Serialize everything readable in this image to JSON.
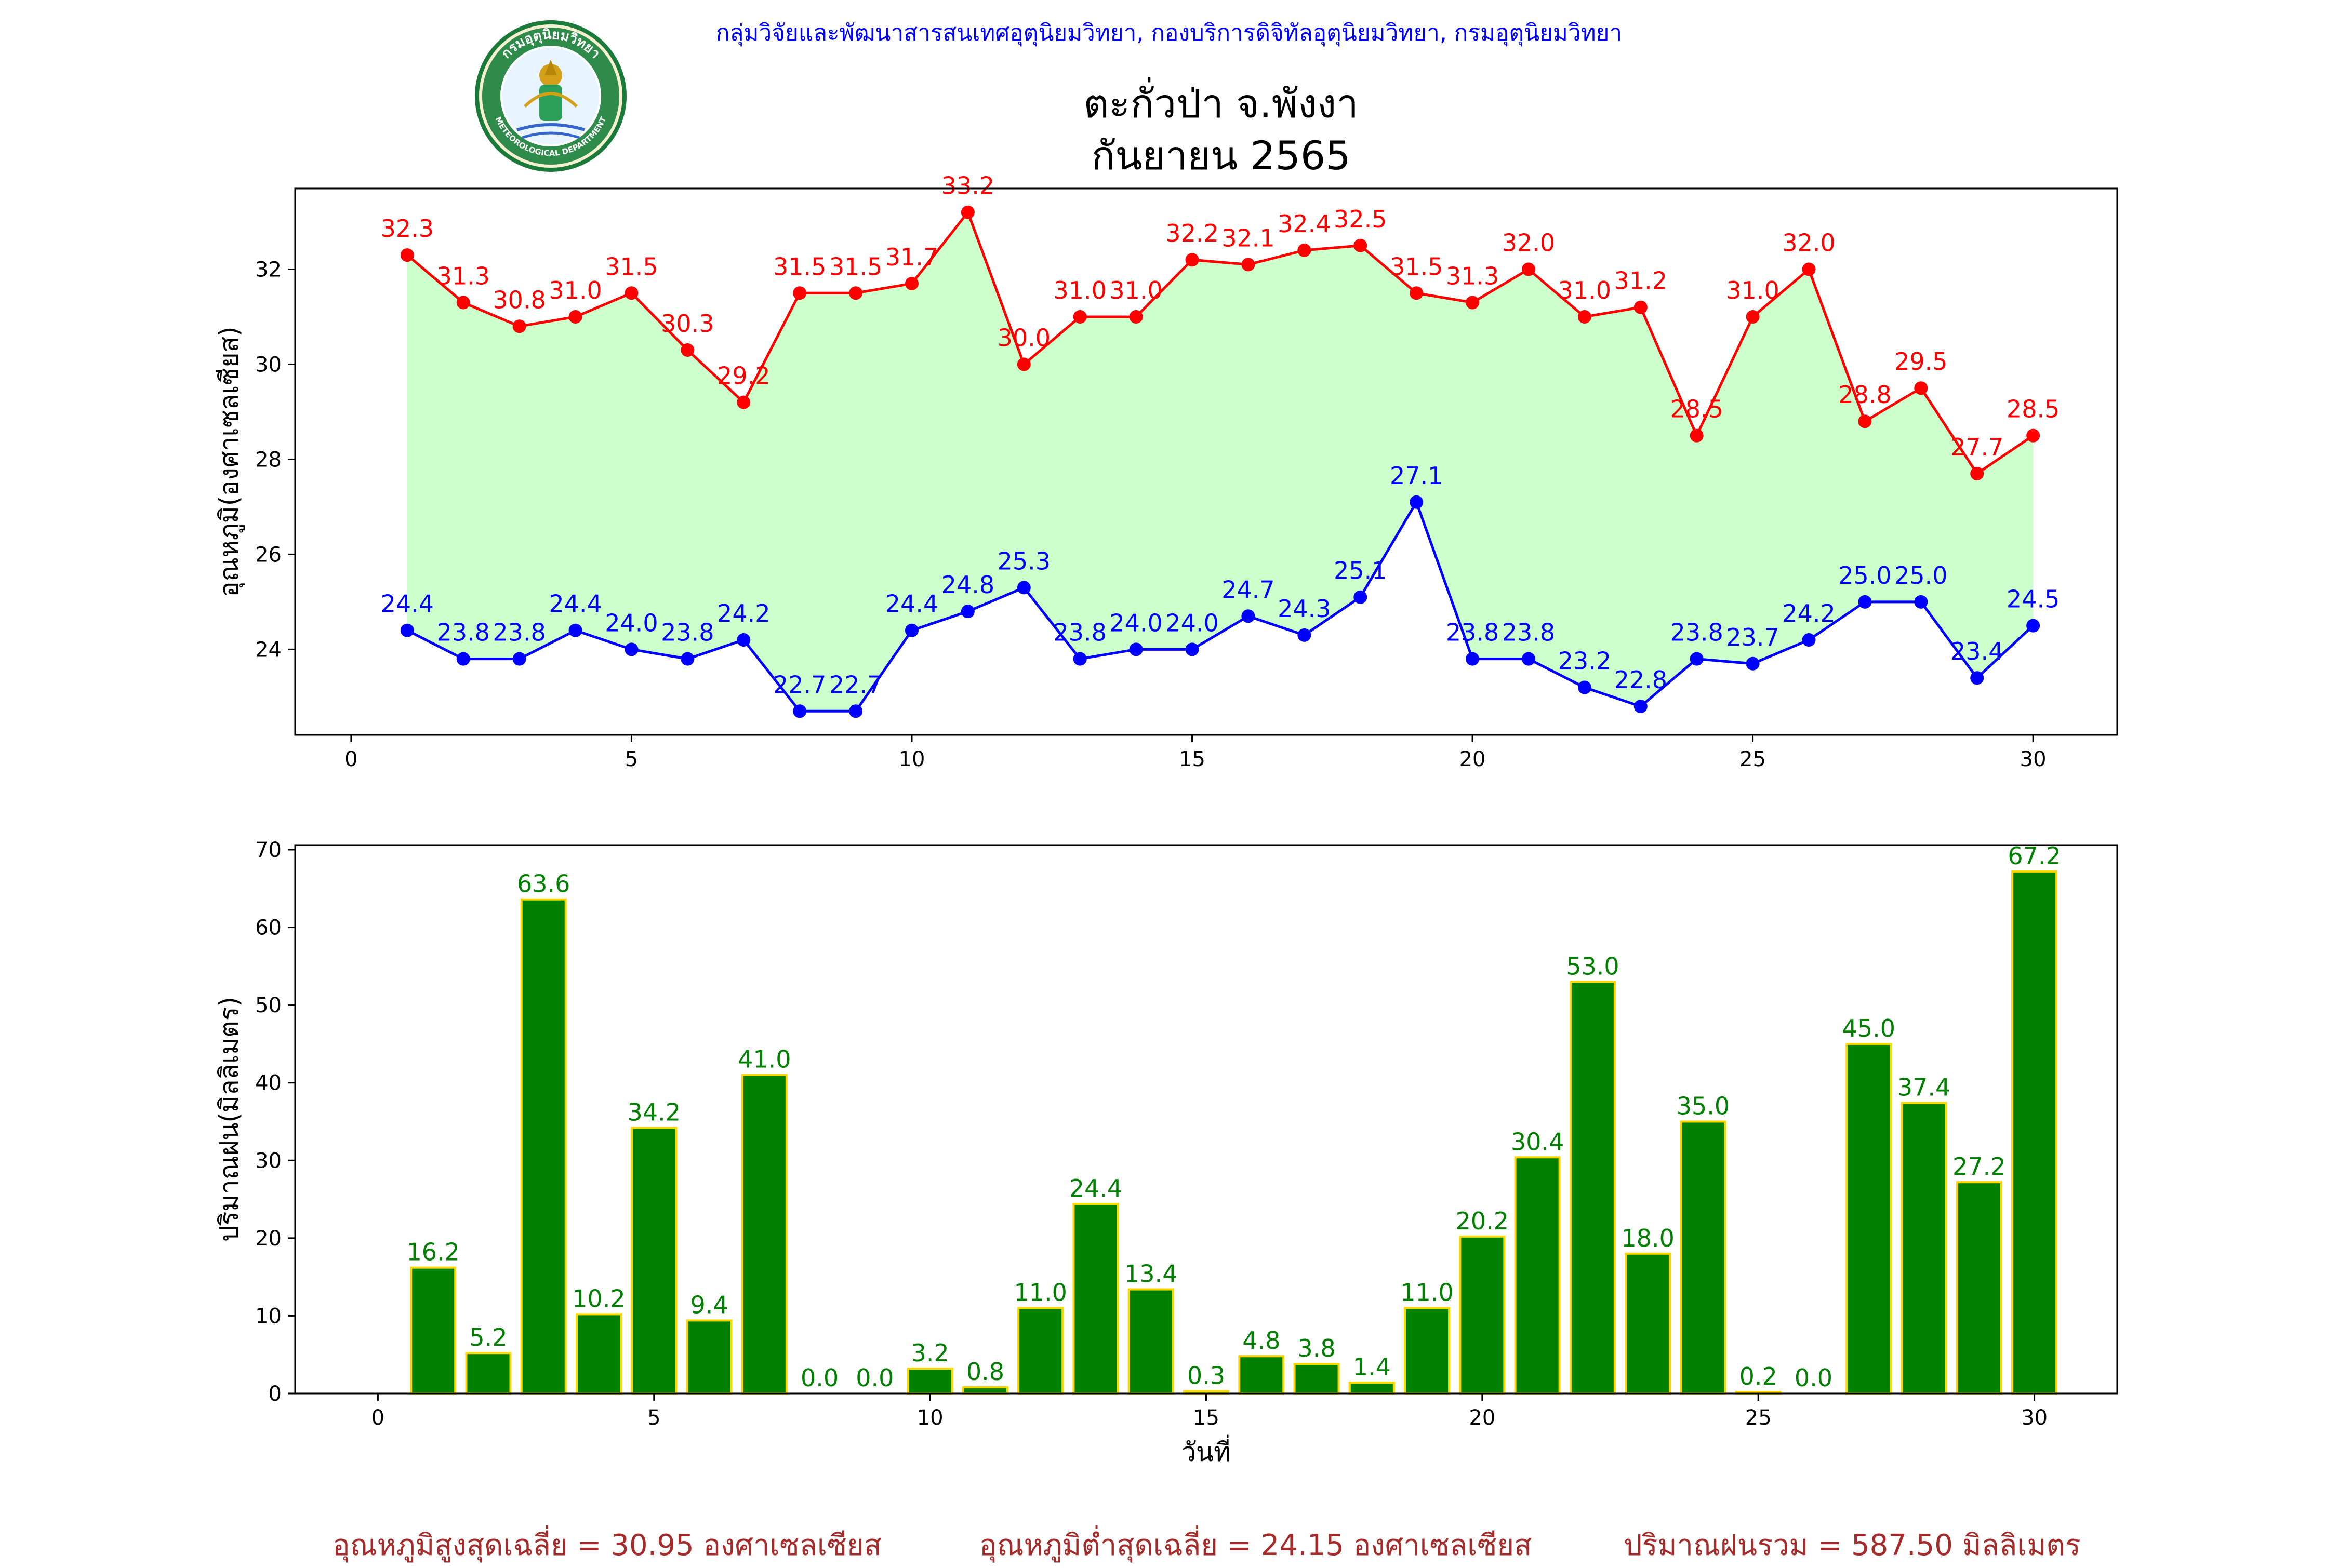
{
  "header": {
    "credit": "กลุ่มวิจัยและพัฒนาสารสนเทศอุตุนิยมวิทยา, กองบริการดิจิทัลอุตุนิยมวิทยา, กรมอุตุนิยมวิทยา",
    "title_line1": "ตะกั่วป่า จ.พังงา",
    "title_line2": "กันยายน 2565",
    "logo": {
      "icon": "meteorological-department-seal-icon",
      "ring_text_top": "กรมอุตุนิยมวิทยา",
      "ring_text_bottom": "METEOROLOGICAL DEPARTMENT"
    }
  },
  "colors": {
    "tmax": "#ff0000",
    "tmin": "#0000ff",
    "fill": "#ccffcc",
    "rain_bar": "#008000",
    "rain_edge": "#ffd700",
    "rain_label": "#008000",
    "footer": "#a52a2a"
  },
  "chart_data": [
    {
      "type": "line",
      "ylabel": "อุณหภูมิ(องศาเซลเซียส)",
      "xlabel": "",
      "xlim": [
        -1,
        31.5
      ],
      "ylim": [
        22.2,
        33.7
      ],
      "xticks": [
        0,
        5,
        10,
        15,
        20,
        25,
        30
      ],
      "yticks": [
        24,
        26,
        28,
        30,
        32
      ],
      "grid": false,
      "fill_between": true,
      "x": [
        1,
        2,
        3,
        4,
        5,
        6,
        7,
        8,
        9,
        10,
        11,
        12,
        13,
        14,
        15,
        16,
        17,
        18,
        19,
        20,
        21,
        22,
        23,
        24,
        25,
        26,
        27,
        28,
        29,
        30
      ],
      "series": [
        {
          "key": "tmax",
          "values": [
            32.3,
            31.3,
            30.8,
            31.0,
            31.5,
            30.3,
            29.2,
            31.5,
            31.5,
            31.7,
            33.2,
            30.0,
            31.0,
            31.0,
            32.2,
            32.1,
            32.4,
            32.5,
            31.5,
            31.3,
            32.0,
            31.0,
            31.2,
            28.5,
            31.0,
            32.0,
            28.8,
            29.5,
            27.7,
            28.5
          ]
        },
        {
          "key": "tmin",
          "values": [
            24.4,
            23.8,
            23.8,
            24.4,
            24.0,
            23.8,
            24.2,
            22.7,
            22.7,
            24.4,
            24.8,
            25.3,
            23.8,
            24.0,
            24.0,
            24.7,
            24.3,
            25.1,
            27.1,
            23.8,
            23.8,
            23.2,
            22.8,
            23.8,
            23.7,
            24.2,
            25.0,
            25.0,
            23.4,
            24.5
          ]
        }
      ]
    },
    {
      "type": "bar",
      "ylabel": "ปริมาณฝน(มิลลิเมตร)",
      "xlabel": "วันที่",
      "xlim": [
        -1.5,
        31.5
      ],
      "ylim": [
        0,
        70.6
      ],
      "xticks": [
        0,
        5,
        10,
        15,
        20,
        25,
        30
      ],
      "yticks": [
        0,
        10,
        20,
        30,
        40,
        50,
        60,
        70
      ],
      "grid": false,
      "x": [
        1,
        2,
        3,
        4,
        5,
        6,
        7,
        8,
        9,
        10,
        11,
        12,
        13,
        14,
        15,
        16,
        17,
        18,
        19,
        20,
        21,
        22,
        23,
        24,
        25,
        26,
        27,
        28,
        29,
        30
      ],
      "series": [
        {
          "key": "rain",
          "values": [
            16.2,
            5.2,
            63.6,
            10.2,
            34.2,
            9.4,
            41.0,
            0.0,
            0.0,
            3.2,
            0.8,
            11.0,
            24.4,
            13.4,
            0.3,
            4.8,
            3.8,
            1.4,
            11.0,
            20.2,
            30.4,
            53.0,
            18.0,
            35.0,
            0.2,
            0.0,
            45.0,
            37.4,
            27.2,
            67.2
          ]
        }
      ]
    }
  ],
  "footer": {
    "avg_max": "อุณหภูมิสูงสุดเฉลี่ย = 30.95 องศาเซลเซียส",
    "avg_min": "อุณหภูมิต่ำสุดเฉลี่ย = 24.15 องศาเซลเซียส",
    "total_rain": "ปริมาณฝนรวม = 587.50 มิลลิเมตร"
  }
}
